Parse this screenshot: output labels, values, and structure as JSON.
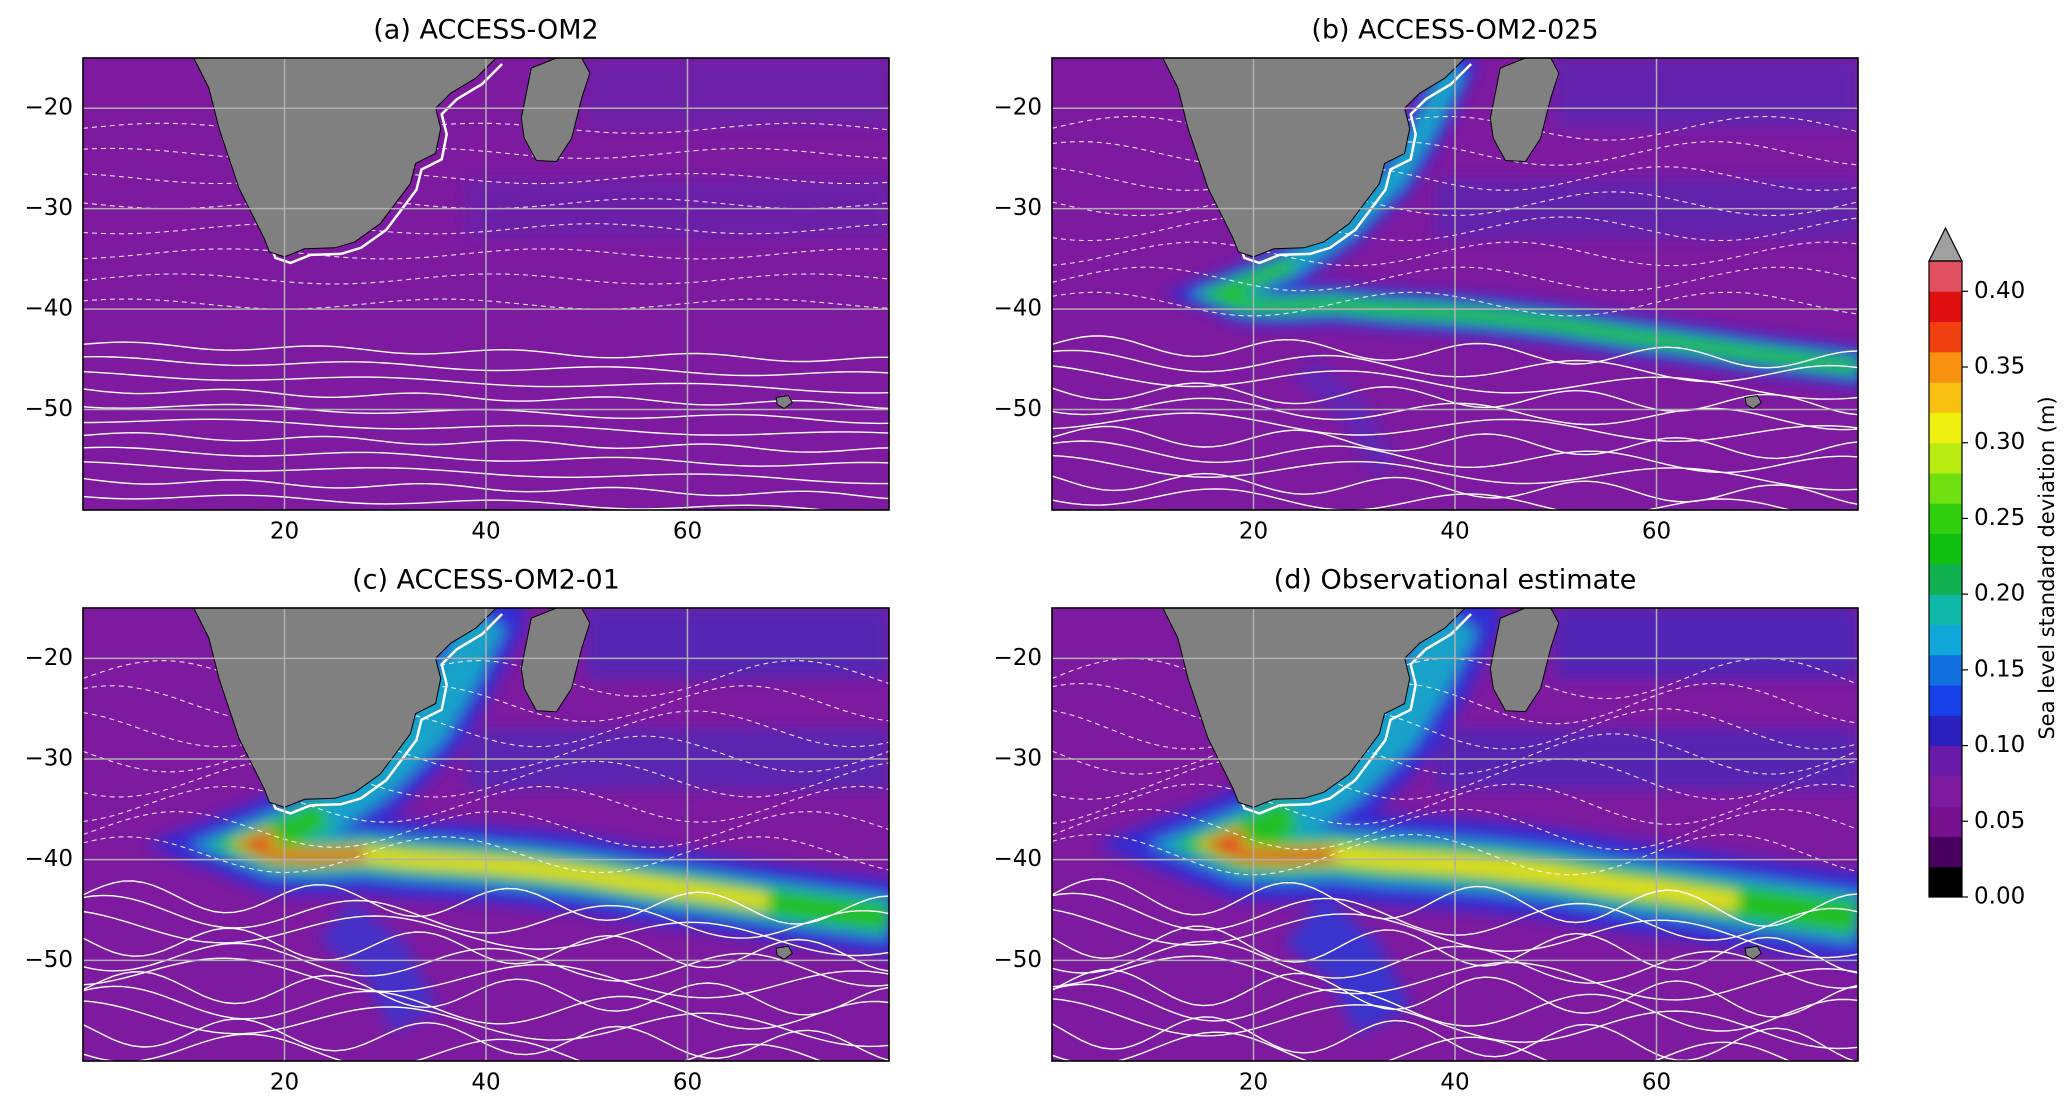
{
  "chart_data": [
    {
      "type": "map",
      "title": "(a) ACCESS-OM2",
      "xlim": [
        0,
        80
      ],
      "ylim": [
        -60,
        -15
      ],
      "xticks": [
        20,
        40,
        60
      ],
      "yticks": [
        {
          "value": -20,
          "label": "−20"
        },
        {
          "value": -30,
          "label": "−30"
        },
        {
          "value": -40,
          "label": "−40"
        },
        {
          "value": -50,
          "label": "−50"
        }
      ],
      "grid": true
    },
    {
      "type": "map",
      "title": "(b) ACCESS-OM2-025",
      "xlim": [
        0,
        80
      ],
      "ylim": [
        -60,
        -15
      ],
      "xticks": [
        20,
        40,
        60
      ],
      "yticks": [
        {
          "value": -20,
          "label": "−20"
        },
        {
          "value": -30,
          "label": "−30"
        },
        {
          "value": -40,
          "label": "−40"
        },
        {
          "value": -50,
          "label": "−50"
        }
      ],
      "grid": true
    },
    {
      "type": "map",
      "title": "(c) ACCESS-OM2-01",
      "xlim": [
        0,
        80
      ],
      "ylim": [
        -60,
        -15
      ],
      "xticks": [
        20,
        40,
        60
      ],
      "yticks": [
        {
          "value": -20,
          "label": "−20"
        },
        {
          "value": -30,
          "label": "−30"
        },
        {
          "value": -40,
          "label": "−40"
        },
        {
          "value": -50,
          "label": "−50"
        }
      ],
      "grid": true
    },
    {
      "type": "map",
      "title": "(d) Observational estimate",
      "xlim": [
        0,
        80
      ],
      "ylim": [
        -60,
        -15
      ],
      "xticks": [
        20,
        40,
        60
      ],
      "yticks": [
        {
          "value": -20,
          "label": "−20"
        },
        {
          "value": -30,
          "label": "−30"
        },
        {
          "value": -40,
          "label": "−40"
        },
        {
          "value": -50,
          "label": "−50"
        }
      ],
      "grid": true
    },
    {
      "type": "colorbar",
      "label": "Sea level standard deviation (m)",
      "lim": [
        0,
        0.42
      ],
      "ticks": [
        {
          "value": 0,
          "label": "0.00"
        },
        {
          "value": 0.05,
          "label": "0.05"
        },
        {
          "value": 0.1,
          "label": "0.10"
        },
        {
          "value": 0.15,
          "label": "0.15"
        },
        {
          "value": 0.2,
          "label": "0.20"
        },
        {
          "value": 0.25,
          "label": "0.25"
        },
        {
          "value": 0.3,
          "label": "0.30"
        },
        {
          "value": 0.35,
          "label": "0.35"
        },
        {
          "value": 0.4,
          "label": "0.40"
        }
      ],
      "colors": [
        "#000000",
        "#4a0060",
        "#76108f",
        "#7d1aa0",
        "#6a1aa8",
        "#2a20c0",
        "#1840e8",
        "#1070e0",
        "#10a8d8",
        "#10b8a8",
        "#10b050",
        "#10c010",
        "#30d010",
        "#70e010",
        "#b8ec10",
        "#f0f010",
        "#f8c010",
        "#f89010",
        "#f04010",
        "#e01010",
        "#e05060"
      ],
      "extend_color": "#a0a0a0"
    }
  ]
}
